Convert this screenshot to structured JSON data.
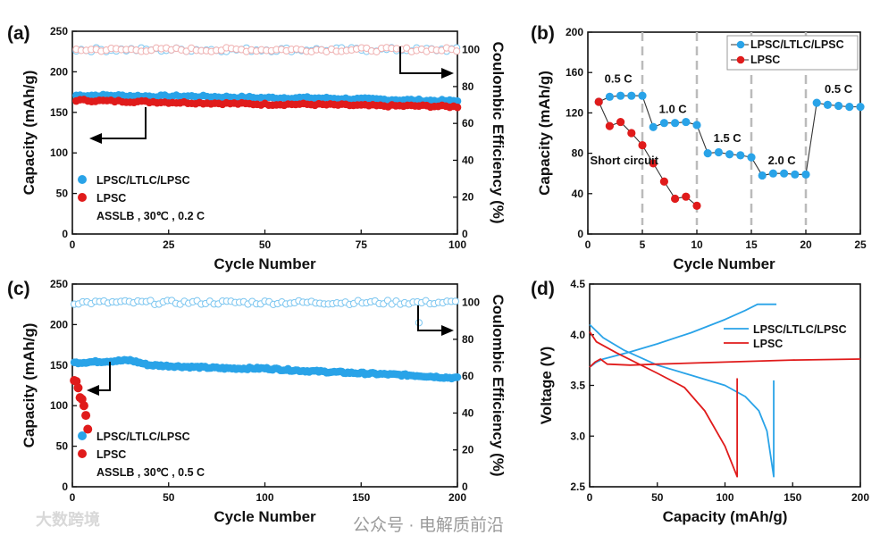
{
  "colors": {
    "blue": "#29a3e8",
    "red": "#e01b1b",
    "axis": "#111111",
    "dash": "#bbbbbb"
  },
  "watermarks": {
    "bottom_left": "大数跨境",
    "bottom_right": "公众号 · 电解质前沿"
  },
  "chart_data": [
    {
      "panel": "(a)",
      "type": "scatter",
      "xlabel": "Cycle Number",
      "ylabel": "Capacity (mAh/g)",
      "y2label": "Coulombic Efficiency (%)",
      "xlim": [
        0,
        100
      ],
      "ylim": [
        0,
        250
      ],
      "y2lim": [
        0,
        110
      ],
      "xticks": [
        0,
        25,
        50,
        75,
        100
      ],
      "yticks": [
        0,
        50,
        100,
        150,
        200,
        250
      ],
      "y2ticks": [
        0,
        20,
        40,
        60,
        80,
        100
      ],
      "legend": [
        "LPSC/LTLC/LPSC",
        "LPSC"
      ],
      "note": "ASSLB , 30℃ , 0.2 C",
      "series": [
        {
          "name": "LPSC/LTLC/LPSC",
          "axis": "left",
          "color": "blue",
          "x": [
            1,
            10,
            20,
            30,
            40,
            50,
            60,
            70,
            80,
            90,
            100
          ],
          "y": [
            171,
            171,
            170,
            170,
            169,
            168,
            168,
            167,
            166,
            165,
            164
          ]
        },
        {
          "name": "LPSC",
          "axis": "left",
          "color": "red",
          "x": [
            1,
            10,
            20,
            30,
            40,
            50,
            60,
            70,
            80,
            90,
            100
          ],
          "y": [
            165,
            164,
            163,
            162,
            161,
            160,
            160,
            159,
            158,
            158,
            157
          ]
        },
        {
          "name": "LPSC/LTLC/LPSC CE",
          "axis": "right",
          "color": "blue",
          "hollow": true,
          "x": [
            1,
            100
          ],
          "y": [
            100,
            100
          ]
        },
        {
          "name": "LPSC CE",
          "axis": "right",
          "color": "red",
          "hollow": true,
          "x": [
            1,
            100
          ],
          "y": [
            100,
            100
          ]
        }
      ]
    },
    {
      "panel": "(b)",
      "type": "line",
      "xlabel": "Cycle Number",
      "ylabel": "Capacity (mAh/g)",
      "xlim": [
        0,
        25
      ],
      "ylim": [
        0,
        200
      ],
      "xticks": [
        0,
        5,
        10,
        15,
        20,
        25
      ],
      "yticks": [
        0,
        40,
        80,
        120,
        160,
        200
      ],
      "rate_boundaries": [
        5,
        10,
        15,
        20
      ],
      "annotations": [
        {
          "text": "0.5 C",
          "x": 2.8,
          "y": 150
        },
        {
          "text": "1.0 C",
          "x": 7.8,
          "y": 120
        },
        {
          "text": "1.5 C",
          "x": 12.8,
          "y": 91
        },
        {
          "text": "2.0 C",
          "x": 17.8,
          "y": 69
        },
        {
          "text": "0.5 C",
          "x": 23,
          "y": 140
        },
        {
          "text": "Short circuit",
          "x": 0.2,
          "y": 69,
          "color": "red"
        }
      ],
      "legend": [
        "LPSC/LTLC/LPSC",
        "LPSC"
      ],
      "series": [
        {
          "name": "LPSC/LTLC/LPSC",
          "color": "blue",
          "x": [
            1,
            2,
            3,
            4,
            5,
            6,
            7,
            8,
            9,
            10,
            11,
            12,
            13,
            14,
            15,
            16,
            17,
            18,
            19,
            20,
            21,
            22,
            23,
            24,
            25
          ],
          "y": [
            131,
            136,
            137,
            137,
            137,
            106,
            110,
            110,
            111,
            108,
            80,
            81,
            79,
            78,
            76,
            58,
            60,
            60,
            59,
            59,
            130,
            128,
            127,
            126,
            126
          ]
        },
        {
          "name": "LPSC",
          "color": "red",
          "x": [
            1,
            2,
            3,
            4,
            5,
            6,
            7,
            8,
            9,
            10
          ],
          "y": [
            131,
            107,
            111,
            100,
            88,
            70,
            52,
            35,
            37,
            28
          ]
        }
      ]
    },
    {
      "panel": "(c)",
      "type": "scatter",
      "xlabel": "Cycle Number",
      "ylabel": "Capacity (mAh/g)",
      "y2label": "Coulombic Efficiency (%)",
      "xlim": [
        0,
        200
      ],
      "ylim": [
        0,
        250
      ],
      "y2lim": [
        0,
        110
      ],
      "xticks": [
        0,
        50,
        100,
        150,
        200
      ],
      "yticks": [
        0,
        50,
        100,
        150,
        200,
        250
      ],
      "y2ticks": [
        0,
        20,
        40,
        60,
        80,
        100
      ],
      "legend": [
        "LPSC/LTLC/LPSC",
        "LPSC"
      ],
      "note": "ASSLB , 30℃ , 0.5 C",
      "series": [
        {
          "name": "LPSC/LTLC/LPSC",
          "axis": "left",
          "color": "blue",
          "x": [
            1,
            20,
            30,
            40,
            60,
            80,
            100,
            120,
            140,
            160,
            180,
            200
          ],
          "y": [
            153,
            155,
            156,
            150,
            148,
            146,
            146,
            143,
            141,
            139,
            137,
            134
          ]
        },
        {
          "name": "LPSC",
          "axis": "left",
          "color": "red",
          "x": [
            1,
            2,
            3,
            4,
            5,
            6,
            7,
            8
          ],
          "y": [
            131,
            130,
            122,
            110,
            108,
            100,
            88,
            71
          ]
        },
        {
          "name": "LPSC/LTLC/LPSC CE",
          "axis": "right",
          "color": "blue",
          "hollow": true,
          "x": [
            1,
            200
          ],
          "y": [
            100,
            100
          ],
          "outlier": {
            "x": 180,
            "y": 89
          }
        }
      ]
    },
    {
      "panel": "(d)",
      "type": "line",
      "xlabel": "Capacity (mAh/g)",
      "ylabel": "Voltage (V)",
      "xlim": [
        0,
        200
      ],
      "ylim": [
        2.5,
        4.5
      ],
      "xticks": [
        0,
        50,
        100,
        150,
        200
      ],
      "yticks": [
        2.5,
        3.0,
        3.5,
        4.0,
        4.5
      ],
      "legend": [
        "LPSC/LTLC/LPSC",
        "LPSC"
      ],
      "series": [
        {
          "name": "LPSC/LTLC/LPSC charge",
          "color": "blue",
          "x": [
            0,
            5,
            10,
            30,
            50,
            75,
            100,
            115,
            124,
            138
          ],
          "y": [
            3.68,
            3.73,
            3.76,
            3.83,
            3.91,
            4.02,
            4.15,
            4.24,
            4.3,
            4.3
          ]
        },
        {
          "name": "LPSC/LTLC/LPSC discharge",
          "color": "blue",
          "x": [
            0,
            10,
            25,
            50,
            75,
            100,
            115,
            125,
            131,
            136,
            136
          ],
          "y": [
            4.1,
            3.97,
            3.85,
            3.7,
            3.6,
            3.5,
            3.39,
            3.25,
            3.05,
            2.6,
            3.55
          ]
        },
        {
          "name": "LPSC charge",
          "color": "red",
          "x": [
            0,
            4,
            8,
            13,
            30,
            50,
            100,
            150,
            200
          ],
          "y": [
            3.68,
            3.73,
            3.76,
            3.71,
            3.7,
            3.71,
            3.73,
            3.75,
            3.76
          ]
        },
        {
          "name": "LPSC discharge",
          "color": "red",
          "x": [
            0,
            5,
            20,
            50,
            70,
            85,
            100,
            109,
            109
          ],
          "y": [
            4.03,
            3.93,
            3.82,
            3.62,
            3.48,
            3.25,
            2.9,
            2.6,
            3.57
          ]
        }
      ]
    }
  ]
}
